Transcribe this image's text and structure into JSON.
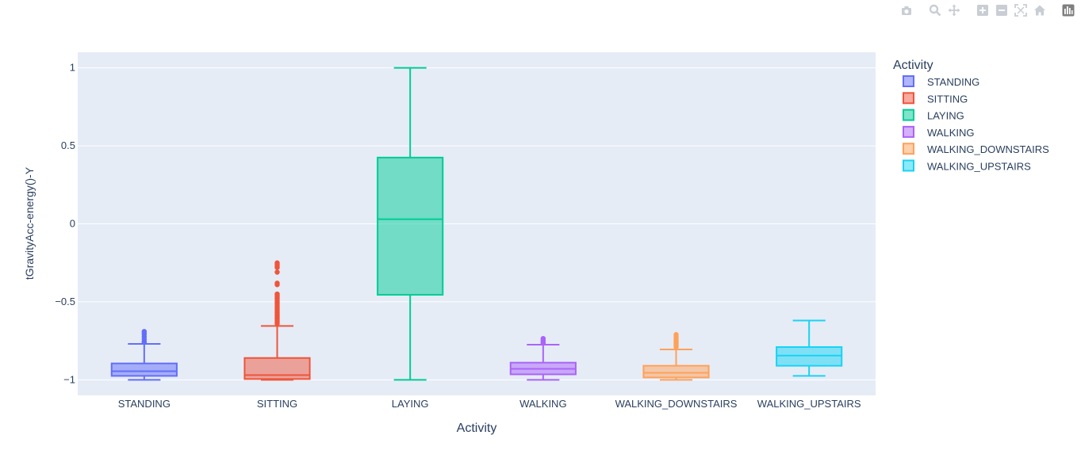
{
  "modebar": {
    "buttons": [
      {
        "name": "camera-icon"
      },
      {
        "name": "zoom-icon"
      },
      {
        "name": "pan-icon"
      },
      {
        "name": "zoom-in-icon"
      },
      {
        "name": "zoom-out-icon"
      },
      {
        "name": "autoscale-icon"
      },
      {
        "name": "home-icon"
      },
      {
        "name": "plotly-logo-icon"
      }
    ]
  },
  "chart_data": {
    "type": "box",
    "title": "",
    "xlabel": "Activity",
    "ylabel": "tGravityAcc-energy()-Y",
    "ylim": [
      -1.1,
      1.1
    ],
    "yticks": [
      1,
      0.5,
      0,
      -0.5,
      -1
    ],
    "ytick_labels": [
      "1",
      "0.5",
      "0",
      "−0.5",
      "−1"
    ],
    "grid": true,
    "legend": {
      "title": "Activity",
      "placement": "right"
    },
    "series": [
      {
        "name": "STANDING",
        "color": "#636efa",
        "min": -1.0,
        "q1": -0.975,
        "median": -0.945,
        "q3": -0.895,
        "max": -0.77,
        "outliers": [
          -0.69,
          -0.7,
          -0.71,
          -0.725,
          -0.74,
          -0.755,
          -0.76
        ]
      },
      {
        "name": "SITTING",
        "color": "#ef553b",
        "min": -1.0,
        "q1": -0.995,
        "median": -0.97,
        "q3": -0.86,
        "max": -0.655,
        "outliers": [
          -0.25,
          -0.26,
          -0.27,
          -0.28,
          -0.31,
          -0.38,
          -0.39,
          -0.45,
          -0.46,
          -0.47,
          -0.48,
          -0.49,
          -0.5,
          -0.51,
          -0.52,
          -0.53,
          -0.54,
          -0.55,
          -0.56,
          -0.57,
          -0.58,
          -0.59,
          -0.6,
          -0.61,
          -0.62,
          -0.63,
          -0.64
        ]
      },
      {
        "name": "LAYING",
        "color": "#00cc96",
        "min": -1.0,
        "q1": -0.455,
        "median": 0.03,
        "q3": 0.425,
        "max": 1.0,
        "outliers": []
      },
      {
        "name": "WALKING",
        "color": "#ab63fa",
        "min": -1.0,
        "q1": -0.965,
        "median": -0.93,
        "q3": -0.89,
        "max": -0.775,
        "outliers": [
          -0.735,
          -0.745,
          -0.755,
          -0.765
        ]
      },
      {
        "name": "WALKING_DOWNSTAIRS",
        "color": "#ffa15a",
        "min": -1.0,
        "q1": -0.985,
        "median": -0.955,
        "q3": -0.91,
        "max": -0.805,
        "outliers": [
          -0.71,
          -0.725,
          -0.74,
          -0.75,
          -0.76,
          -0.77,
          -0.78,
          -0.79
        ]
      },
      {
        "name": "WALKING_UPSTAIRS",
        "color": "#19d3f3",
        "min": -0.975,
        "q1": -0.91,
        "median": -0.845,
        "q3": -0.79,
        "max": -0.62,
        "outliers": []
      }
    ]
  }
}
